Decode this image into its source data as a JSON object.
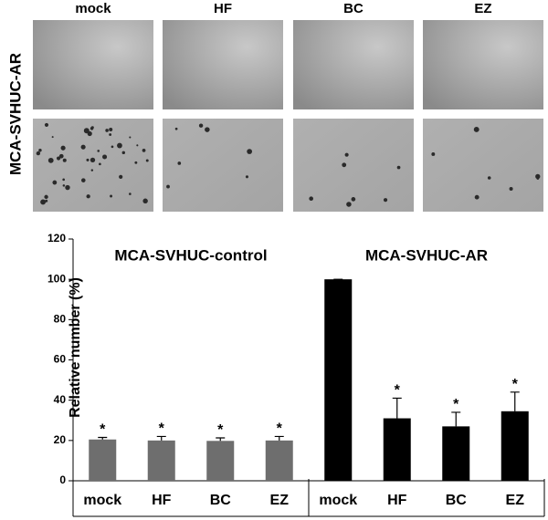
{
  "image_panel": {
    "column_labels": [
      "mock",
      "HF",
      "BC",
      "EZ"
    ],
    "row_label": "MCA-SVHUC-AR"
  },
  "chart_data": {
    "type": "bar",
    "y_label": "Relative number (%)",
    "ylim": [
      0,
      120
    ],
    "yticks": [
      0,
      20,
      40,
      60,
      80,
      100,
      120
    ],
    "groups": [
      {
        "name": "MCA-SVHUC-control",
        "color": "#6e6e6e",
        "categories": [
          "mock",
          "HF",
          "BC",
          "EZ"
        ],
        "values": [
          20.5,
          20,
          19.8,
          20
        ],
        "errors": [
          1,
          2,
          1.5,
          2
        ],
        "annotations": [
          "*",
          "*",
          "*",
          "*"
        ]
      },
      {
        "name": "MCA-SVHUC-AR",
        "color": "#000000",
        "categories": [
          "mock",
          "HF",
          "BC",
          "EZ"
        ],
        "values": [
          100,
          31,
          27,
          34.5
        ],
        "errors": [
          0,
          10,
          7,
          9.5
        ],
        "annotations": [
          null,
          "*",
          "*",
          "*"
        ]
      }
    ]
  }
}
